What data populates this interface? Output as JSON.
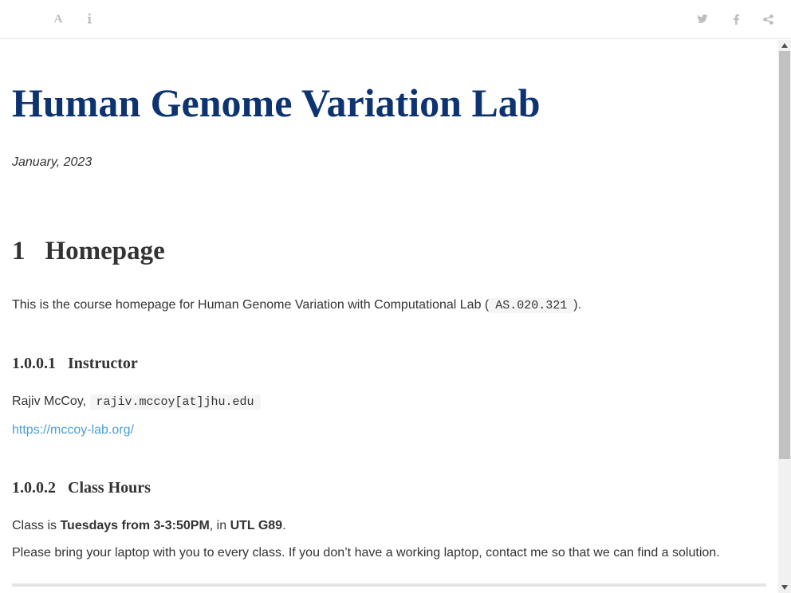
{
  "toolbar": {
    "left_icons": [
      "font-settings-icon",
      "info-icon"
    ],
    "right_icons": [
      "twitter-icon",
      "facebook-icon",
      "share-icon"
    ],
    "font_button_glyph": "A"
  },
  "document": {
    "title": "Human Genome Variation Lab",
    "date": "January, 2023",
    "section": {
      "number": "1",
      "title": "Homepage"
    },
    "intro_before": "This is the course homepage for Human Genome Variation with Computational Lab (",
    "course_code": "AS.020.321",
    "intro_after": ").",
    "instructor": {
      "number": "1.0.0.1",
      "heading": "Instructor",
      "name": "Rajiv McCoy,",
      "email": "rajiv.mccoy[at]jhu.edu",
      "url": "https://mccoy-lab.org/"
    },
    "class_hours": {
      "number": "1.0.0.2",
      "heading": "Class Hours",
      "line1_prefix": "Class is ",
      "time": "Tuesdays from 3-3:50PM",
      "line1_mid": ", in ",
      "room": "UTL G89",
      "line1_end": ".",
      "line2": "Please bring your laptop with you to every class. If you don’t have a working laptop, contact me so that we can find a solution."
    }
  },
  "colors": {
    "title": "#0d3470",
    "link": "#4a9fd6",
    "icon": "#bdbdbd"
  }
}
